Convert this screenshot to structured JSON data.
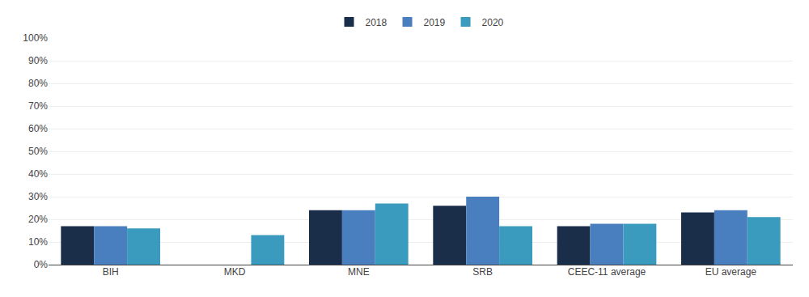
{
  "chart_data": {
    "type": "bar",
    "categories": [
      "BIH",
      "MKD",
      "MNE",
      "SRB",
      "CEEC-11 average",
      "EU average"
    ],
    "series": [
      {
        "name": "2018",
        "color": "#1a2e4a",
        "values": [
          17,
          null,
          24,
          26,
          17,
          23
        ]
      },
      {
        "name": "2019",
        "color": "#4a7fbf",
        "values": [
          17,
          null,
          24,
          30,
          18,
          24
        ]
      },
      {
        "name": "2020",
        "color": "#3a9bbf",
        "values": [
          16,
          13,
          27,
          17,
          18,
          21
        ]
      }
    ],
    "ylim": [
      0,
      100
    ],
    "yticks": [
      {
        "value": 0,
        "label": "0%"
      },
      {
        "value": 10,
        "label": "10%"
      },
      {
        "value": 20,
        "label": "20%"
      },
      {
        "value": 30,
        "label": "30%"
      },
      {
        "value": 40,
        "label": "40%"
      },
      {
        "value": 50,
        "label": "50%"
      },
      {
        "value": 60,
        "label": "60%"
      },
      {
        "value": 70,
        "label": "70%"
      },
      {
        "value": 80,
        "label": "80%"
      },
      {
        "value": 90,
        "label": "90%"
      },
      {
        "value": 100,
        "label": "100%"
      }
    ],
    "grid": true,
    "legend": "top"
  }
}
